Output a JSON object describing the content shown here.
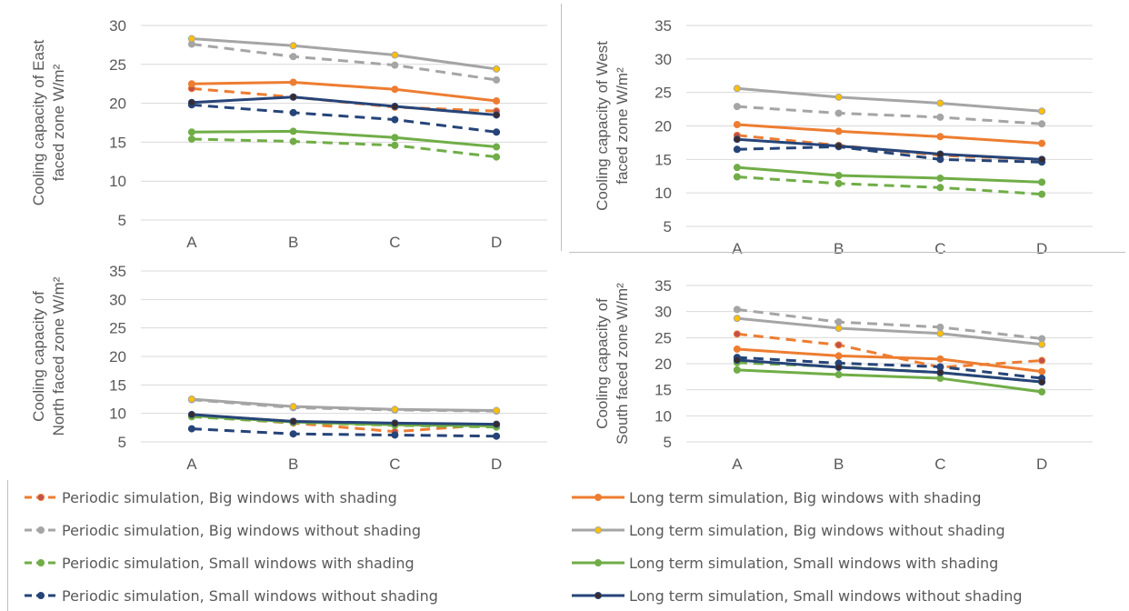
{
  "colors": {
    "orange": "#ED7D31",
    "gray": "#A5A5A5",
    "green": "#70AD47",
    "navy": "#264478",
    "gold_marker": "#FFC000",
    "red_marker": "#C0504D",
    "axis_text": "#595959",
    "gridline": "#D9D9D9"
  },
  "legend": [
    {
      "label": "Periodic simulation, Big windows with shading",
      "color": "#ED7D31",
      "dashed": true,
      "marker": "#C0504D"
    },
    {
      "label": "Long term simulation, Big windows with shading",
      "color": "#ED7D31",
      "dashed": false,
      "marker": "#ED7D31"
    },
    {
      "label": "Periodic simulation, Big windows without shading",
      "color": "#A5A5A5",
      "dashed": true,
      "marker": "#A5A5A5"
    },
    {
      "label": "Long term simulation, Big windows without shading",
      "color": "#A5A5A5",
      "dashed": false,
      "marker": "#FFC000"
    },
    {
      "label": "Periodic simulation, Small windows with shading",
      "color": "#70AD47",
      "dashed": true,
      "marker": "#70AD47"
    },
    {
      "label": "Long term simulation, Small windows with shading",
      "color": "#70AD47",
      "dashed": false,
      "marker": "#70AD47"
    },
    {
      "label": "Periodic simulation, Small windows without shading",
      "color": "#264478",
      "dashed": true,
      "marker": "#264478"
    },
    {
      "label": "Long term simulation, Small windows without shading",
      "color": "#264478",
      "dashed": false,
      "marker": "#3A2A2A"
    }
  ],
  "chart_data": [
    {
      "type": "line",
      "ylabel_lines": [
        "Cooling capacity of East",
        "faced zone W/m²"
      ],
      "categories": [
        "A",
        "B",
        "C",
        "D"
      ],
      "ylim": [
        5,
        30
      ],
      "yticks": [
        5,
        10,
        15,
        20,
        25,
        30
      ],
      "grid": true,
      "series": [
        {
          "name": "Periodic simulation, Big windows with shading",
          "values": [
            21.9,
            20.8,
            19.5,
            19.0
          ]
        },
        {
          "name": "Long term simulation, Big windows with shading",
          "values": [
            22.5,
            22.7,
            21.8,
            20.3
          ]
        },
        {
          "name": "Periodic simulation, Big windows without shading",
          "values": [
            27.6,
            26.0,
            24.9,
            23.0
          ]
        },
        {
          "name": "Long term simulation, Big windows without shading",
          "values": [
            28.3,
            27.4,
            26.2,
            24.4
          ]
        },
        {
          "name": "Periodic simulation, Small windows with shading",
          "values": [
            15.4,
            15.1,
            14.6,
            13.1
          ]
        },
        {
          "name": "Long term simulation, Small windows with shading",
          "values": [
            16.3,
            16.4,
            15.6,
            14.4
          ]
        },
        {
          "name": "Periodic simulation, Small windows without shading",
          "values": [
            19.8,
            18.8,
            17.9,
            16.3
          ]
        },
        {
          "name": "Long term simulation, Small windows without shading",
          "values": [
            20.1,
            20.8,
            19.6,
            18.5
          ]
        }
      ]
    },
    {
      "type": "line",
      "ylabel_lines": [
        "Cooling capacity of West",
        "faced zone W/m²"
      ],
      "categories": [
        "A",
        "B",
        "C",
        "D"
      ],
      "ylim": [
        5,
        35
      ],
      "yticks": [
        5,
        10,
        15,
        20,
        25,
        30,
        35
      ],
      "grid": true,
      "series": [
        {
          "name": "Periodic simulation, Big windows with shading",
          "values": [
            18.6,
            17.1,
            15.6,
            15.0
          ]
        },
        {
          "name": "Long term simulation, Big windows with shading",
          "values": [
            20.2,
            19.2,
            18.4,
            17.4
          ]
        },
        {
          "name": "Periodic simulation, Big windows without shading",
          "values": [
            22.9,
            21.9,
            21.3,
            20.3
          ]
        },
        {
          "name": "Long term simulation, Big windows without shading",
          "values": [
            25.6,
            24.3,
            23.4,
            22.2
          ]
        },
        {
          "name": "Periodic simulation, Small windows with shading",
          "values": [
            12.4,
            11.4,
            10.8,
            9.8
          ]
        },
        {
          "name": "Long term simulation, Small windows with shading",
          "values": [
            13.8,
            12.6,
            12.2,
            11.6
          ]
        },
        {
          "name": "Periodic simulation, Small windows without shading",
          "values": [
            16.5,
            16.9,
            15.0,
            14.6
          ]
        },
        {
          "name": "Long term simulation, Small windows without shading",
          "values": [
            18.0,
            17.0,
            15.8,
            15.0
          ]
        }
      ]
    },
    {
      "type": "line",
      "ylabel_lines": [
        "Cooling capacity of",
        "North faced zone W/m²"
      ],
      "categories": [
        "A",
        "B",
        "C",
        "D"
      ],
      "ylim": [
        5,
        35
      ],
      "yticks": [
        5,
        10,
        15,
        20,
        25,
        30,
        35
      ],
      "grid": true,
      "series": [
        {
          "name": "Periodic simulation, Big windows with shading",
          "values": [
            9.5,
            8.3,
            6.8,
            8.1
          ]
        },
        {
          "name": "Long term simulation, Big windows with shading",
          "values": [
            9.7,
            8.6,
            8.2,
            7.8
          ]
        },
        {
          "name": "Periodic simulation, Big windows without shading",
          "values": [
            12.4,
            11.0,
            10.6,
            10.4
          ]
        },
        {
          "name": "Long term simulation, Big windows without shading",
          "values": [
            12.5,
            11.2,
            10.7,
            10.5
          ]
        },
        {
          "name": "Periodic simulation, Small windows with shading",
          "values": [
            9.4,
            8.4,
            7.9,
            7.6
          ]
        },
        {
          "name": "Long term simulation, Small windows with shading",
          "values": [
            9.6,
            8.5,
            8.0,
            7.8
          ]
        },
        {
          "name": "Periodic simulation, Small windows without shading",
          "values": [
            7.3,
            6.4,
            6.2,
            6.0
          ]
        },
        {
          "name": "Long term simulation, Small windows without shading",
          "values": [
            9.8,
            8.6,
            8.3,
            8.1
          ]
        }
      ]
    },
    {
      "type": "line",
      "ylabel_lines": [
        "Cooling capacity of",
        "South faced zone W/m²"
      ],
      "categories": [
        "A",
        "B",
        "C",
        "D"
      ],
      "ylim": [
        5,
        35
      ],
      "yticks": [
        5,
        10,
        15,
        20,
        25,
        30,
        35
      ],
      "grid": true,
      "series": [
        {
          "name": "Periodic simulation, Big windows with shading",
          "values": [
            25.7,
            23.6,
            19.3,
            20.6
          ]
        },
        {
          "name": "Long term simulation, Big windows with shading",
          "values": [
            22.8,
            21.5,
            20.9,
            18.5
          ]
        },
        {
          "name": "Periodic simulation, Big windows without shading",
          "values": [
            30.4,
            28.0,
            27.0,
            24.8
          ]
        },
        {
          "name": "Long term simulation, Big windows without shading",
          "values": [
            28.7,
            26.8,
            25.8,
            23.7
          ]
        },
        {
          "name": "Periodic simulation, Small windows with shading",
          "values": [
            20.2,
            19.4,
            18.3,
            16.5
          ]
        },
        {
          "name": "Long term simulation, Small windows with shading",
          "values": [
            18.8,
            17.9,
            17.2,
            14.6
          ]
        },
        {
          "name": "Periodic simulation, Small windows without shading",
          "values": [
            21.2,
            20.1,
            19.4,
            17.2
          ]
        },
        {
          "name": "Long term simulation, Small windows without shading",
          "values": [
            20.7,
            19.3,
            18.3,
            16.5
          ]
        }
      ]
    }
  ]
}
